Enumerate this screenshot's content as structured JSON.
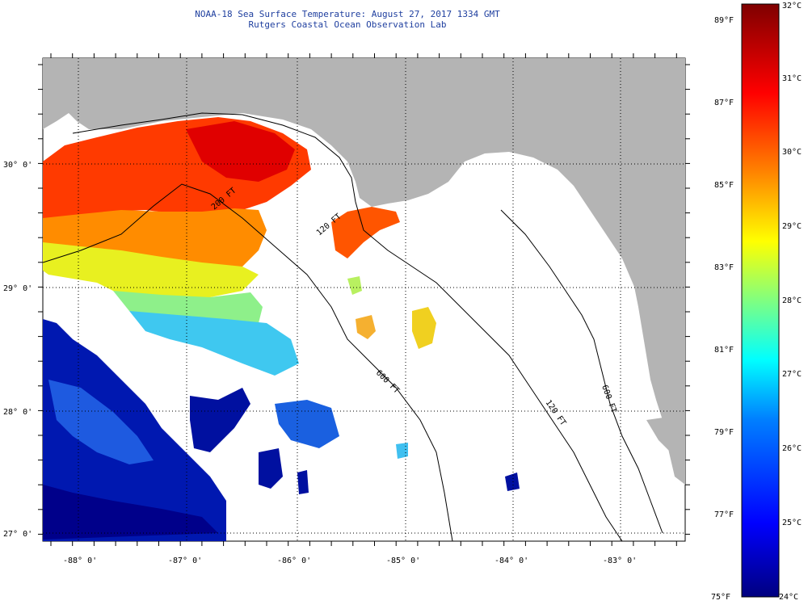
{
  "header": {
    "title": "NOAA-18 Sea Surface Temperature:  August 27, 2017 1334 GMT",
    "subtitle": "Rutgers Coastal Ocean Observation Lab"
  },
  "map": {
    "lat_labels": [
      "30° 0'",
      "29° 0'",
      "28° 0'",
      "27° 0'"
    ],
    "lon_labels": [
      "-88° 0'",
      "-87° 0'",
      "-86° 0'",
      "-85° 0'",
      "-84° 0'",
      "-83° 0'"
    ],
    "contour_labels": [
      "200 FT",
      "120 FT",
      "600 FT",
      "120 FT",
      "600 FT"
    ],
    "colors": {
      "land": "#b4b4b4",
      "no_data": "#ffffff"
    }
  },
  "colorbar": {
    "fahrenheit_labels": [
      "89°F",
      "87°F",
      "85°F",
      "83°F",
      "81°F",
      "79°F",
      "77°F",
      "75°F"
    ],
    "celsius_labels": [
      "32°C",
      "31°C",
      "30°C",
      "29°C",
      "28°C",
      "27°C",
      "26°C",
      "25°C",
      "24°C"
    ],
    "range_c": [
      24,
      32
    ],
    "colors": [
      "#00007f",
      "#0000ff",
      "#0080ff",
      "#00ffff",
      "#80ff80",
      "#ffff00",
      "#ff8000",
      "#ff0000",
      "#7f0000"
    ]
  }
}
